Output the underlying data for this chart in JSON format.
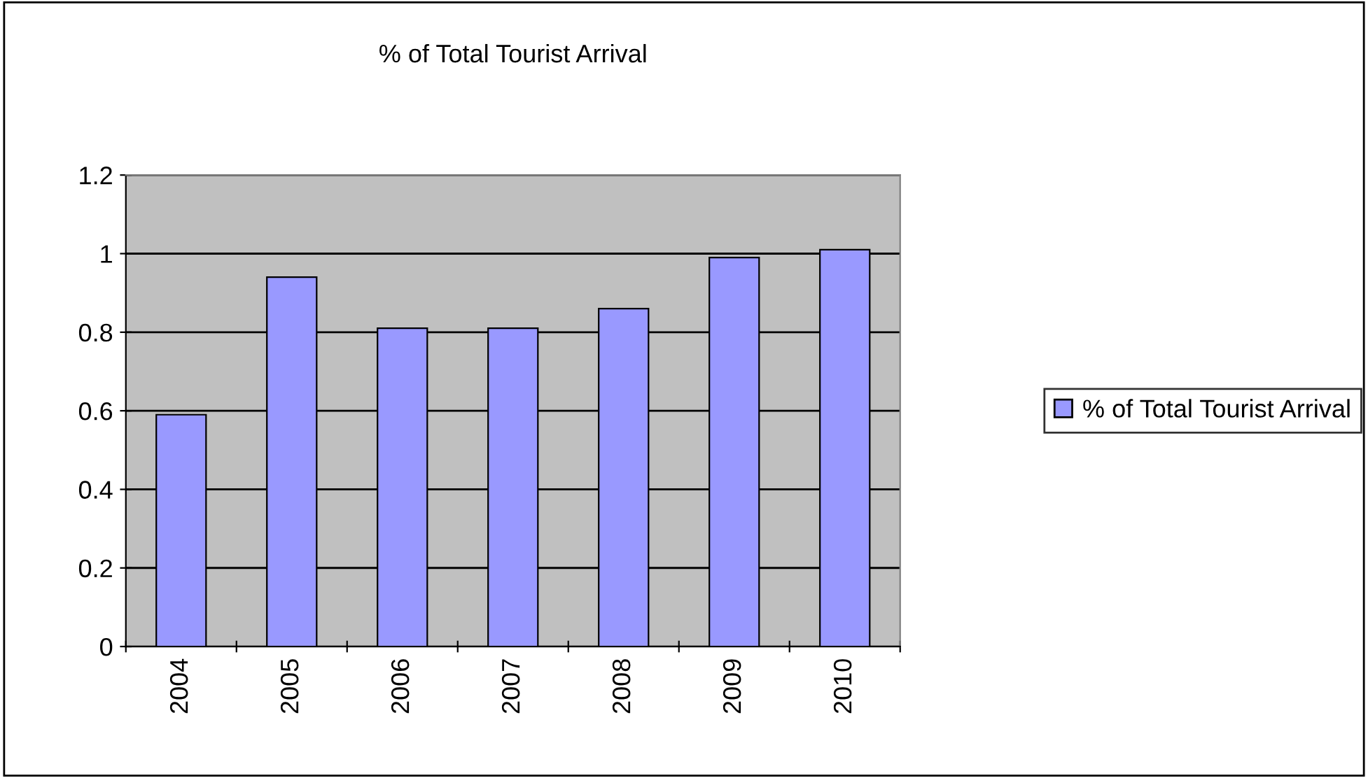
{
  "chart_data": {
    "type": "bar",
    "title": "% of Total Tourist Arrival",
    "categories": [
      "2004",
      "2005",
      "2006",
      "2007",
      "2008",
      "2009",
      "2010"
    ],
    "series": [
      {
        "name": "% of Total Tourist Arrival",
        "color": "#9999ff",
        "values": [
          0.59,
          0.94,
          0.81,
          0.81,
          0.86,
          0.99,
          1.01
        ]
      }
    ],
    "ylim": [
      0,
      1.2
    ],
    "yticks": [
      0,
      {
        "value": 0.2,
        "label": "0.2"
      },
      {
        "value": 0.4,
        "label": "0.4"
      },
      {
        "value": 0.6,
        "label": "0.6"
      },
      {
        "value": 0.8,
        "label": "0.8"
      },
      1,
      {
        "value": 1.2,
        "label": "1.2"
      }
    ],
    "grid": "y",
    "legend": "right"
  }
}
